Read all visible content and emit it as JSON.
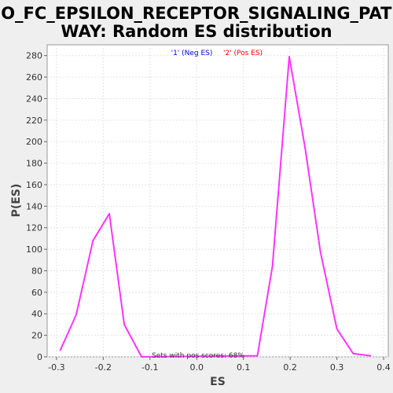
{
  "chart_data": {
    "type": "line",
    "title_line1": "GO_FC_EPSILON_RECEPTOR_SIGNALING_PATH",
    "title_line2": "WAY: Random ES distribution",
    "xlabel": "ES",
    "ylabel": "P(ES)",
    "xlim": [
      -0.32,
      0.41
    ],
    "ylim": [
      0,
      290
    ],
    "x_ticks": [
      "-0.3",
      "-0.2",
      "-0.1",
      "0.0",
      "0.1",
      "0.2",
      "0.3",
      "0.4"
    ],
    "y_ticks": [
      "0",
      "20",
      "40",
      "60",
      "80",
      "100",
      "120",
      "140",
      "160",
      "180",
      "200",
      "220",
      "240",
      "260",
      "280"
    ],
    "grid": true,
    "legend": [
      {
        "label": "'1' (Neg ES)",
        "color": "#0000ff"
      },
      {
        "label": "'2' (Pos ES)",
        "color": "#ff0000"
      }
    ],
    "series": [
      {
        "color": "#ff33ff",
        "points": [
          [
            -0.292,
            6
          ],
          [
            -0.258,
            39
          ],
          [
            -0.222,
            108
          ],
          [
            -0.187,
            133
          ],
          [
            -0.155,
            30
          ],
          [
            -0.118,
            0
          ],
          [
            0.13,
            1
          ],
          [
            0.162,
            84
          ],
          [
            0.198,
            279
          ],
          [
            0.232,
            194
          ],
          [
            0.265,
            97
          ],
          [
            0.3,
            26
          ],
          [
            0.335,
            3
          ],
          [
            0.372,
            1
          ]
        ]
      }
    ],
    "annotation": "Sets with pos scores: 68%"
  }
}
